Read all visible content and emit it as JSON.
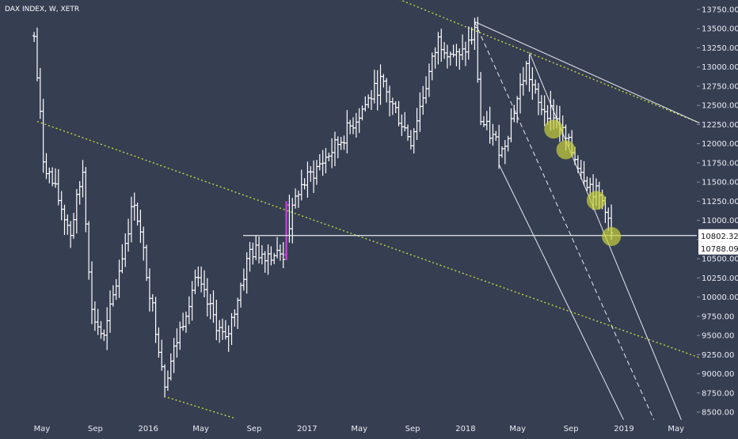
{
  "chart_data": {
    "type": "ohlc",
    "title": "DAX INDEX, W, XETR",
    "ylim": [
      8400,
      13800
    ],
    "y_ticks": [
      "13750.00",
      "13500.00",
      "13250.00",
      "13000.00",
      "12750.00",
      "12500.00",
      "12250.00",
      "12000.00",
      "11750.00",
      "11500.00",
      "11250.00",
      "11000.00",
      "10750.00",
      "10500.00",
      "10250.00",
      "10000.00",
      "9750.00",
      "9500.00",
      "9250.00",
      "9000.00",
      "8750.00",
      "8500.00"
    ],
    "x_ticks": [
      {
        "label": "May",
        "x": "2015-05"
      },
      {
        "label": "Sep",
        "x": "2015-09"
      },
      {
        "label": "2016",
        "x": "2016-01"
      },
      {
        "label": "May",
        "x": "2016-05"
      },
      {
        "label": "Sep",
        "x": "2016-09"
      },
      {
        "label": "2017",
        "x": "2017-01"
      },
      {
        "label": "May",
        "x": "2017-05"
      },
      {
        "label": "Sep",
        "x": "2017-09"
      },
      {
        "label": "2018",
        "x": "2018-01"
      },
      {
        "label": "May",
        "x": "2018-05"
      },
      {
        "label": "Sep",
        "x": "2018-09"
      },
      {
        "label": "2019",
        "x": "2019-01"
      },
      {
        "label": "May",
        "x": "2019-05"
      }
    ],
    "price_labels": {
      "last": "10802.32",
      "second": "10788.09"
    },
    "horizontal_level": 10802.32,
    "grid": false,
    "colors": {
      "background": "#363e52",
      "bars": "#ffffff",
      "highlight": "#c043d1",
      "channel": "#c8e63a",
      "lines": "#e6e9ef",
      "circles": "#c8d23c"
    },
    "circles": [
      {
        "x": "2018-07-23",
        "y": 12190
      },
      {
        "x": "2018-08-20",
        "y": 11920
      },
      {
        "x": "2018-10-29",
        "y": 11260
      },
      {
        "x": "2018-12-03",
        "y": 10790
      }
    ],
    "anchors": [
      {
        "x": "2015-04-13",
        "y": 13400
      },
      {
        "x": "2015-05-04",
        "y": 11810
      },
      {
        "x": "2015-07-06",
        "y": 10840
      },
      {
        "x": "2015-08-03",
        "y": 11650
      },
      {
        "x": "2015-08-24",
        "y": 9800
      },
      {
        "x": "2015-09-21",
        "y": 9450
      },
      {
        "x": "2015-11-30",
        "y": 11280
      },
      {
        "x": "2016-01-11",
        "y": 9850
      },
      {
        "x": "2016-02-08",
        "y": 8900
      },
      {
        "x": "2016-04-18",
        "y": 10250
      },
      {
        "x": "2016-06-27",
        "y": 9400
      },
      {
        "x": "2016-08-22",
        "y": 10600
      },
      {
        "x": "2016-11-07",
        "y": 10550
      },
      {
        "x": "2016-11-14",
        "y": 10800
      },
      {
        "x": "2016-12-12",
        "y": 11400
      },
      {
        "x": "2017-03-20",
        "y": 12050
      },
      {
        "x": "2017-06-19",
        "y": 12800
      },
      {
        "x": "2017-08-28",
        "y": 12050
      },
      {
        "x": "2017-10-30",
        "y": 13350
      },
      {
        "x": "2017-12-18",
        "y": 13100
      },
      {
        "x": "2018-01-22",
        "y": 13450
      },
      {
        "x": "2018-02-05",
        "y": 12300
      },
      {
        "x": "2018-03-26",
        "y": 11900
      },
      {
        "x": "2018-05-21",
        "y": 13000
      },
      {
        "x": "2018-06-18",
        "y": 12500
      },
      {
        "x": "2018-07-23",
        "y": 12400
      },
      {
        "x": "2018-08-20",
        "y": 12050
      },
      {
        "x": "2018-10-15",
        "y": 11450
      },
      {
        "x": "2018-11-19",
        "y": 11200
      },
      {
        "x": "2018-12-03",
        "y": 10790
      }
    ],
    "channel_lines": [
      {
        "x1": "2015-04-20",
        "y1": 12290,
        "x2": "2019-06-24",
        "y2": 9210,
        "style": "dotted"
      },
      {
        "x1": "2017-05-08",
        "y1": 14080,
        "x2": "2019-06-24",
        "y2": 12270,
        "style": "dotted"
      },
      {
        "x1": "2016-02-15",
        "y1": 8690,
        "x2": "2016-07-18",
        "y2": 8420,
        "style": "dotted"
      },
      {
        "x1": "2018-01-22",
        "y1": 13590,
        "x2": "2019-06-24",
        "y2": 12270,
        "style": "solid"
      },
      {
        "x1": "2018-01-22",
        "y1": 13590,
        "x2": "2019-03-11",
        "y2": 8400,
        "style": "dashed"
      },
      {
        "x1": "2018-03-19",
        "y1": 11730,
        "x2": "2018-12-31",
        "y2": 8400,
        "style": "solid"
      },
      {
        "x1": "2018-05-28",
        "y1": 13190,
        "x2": "2019-05-13",
        "y2": 8400,
        "style": "solid"
      }
    ],
    "highlight_bar": {
      "x": "2016-11-14",
      "open": 10550,
      "close": 11200,
      "high": 11250,
      "low": 10480
    }
  }
}
